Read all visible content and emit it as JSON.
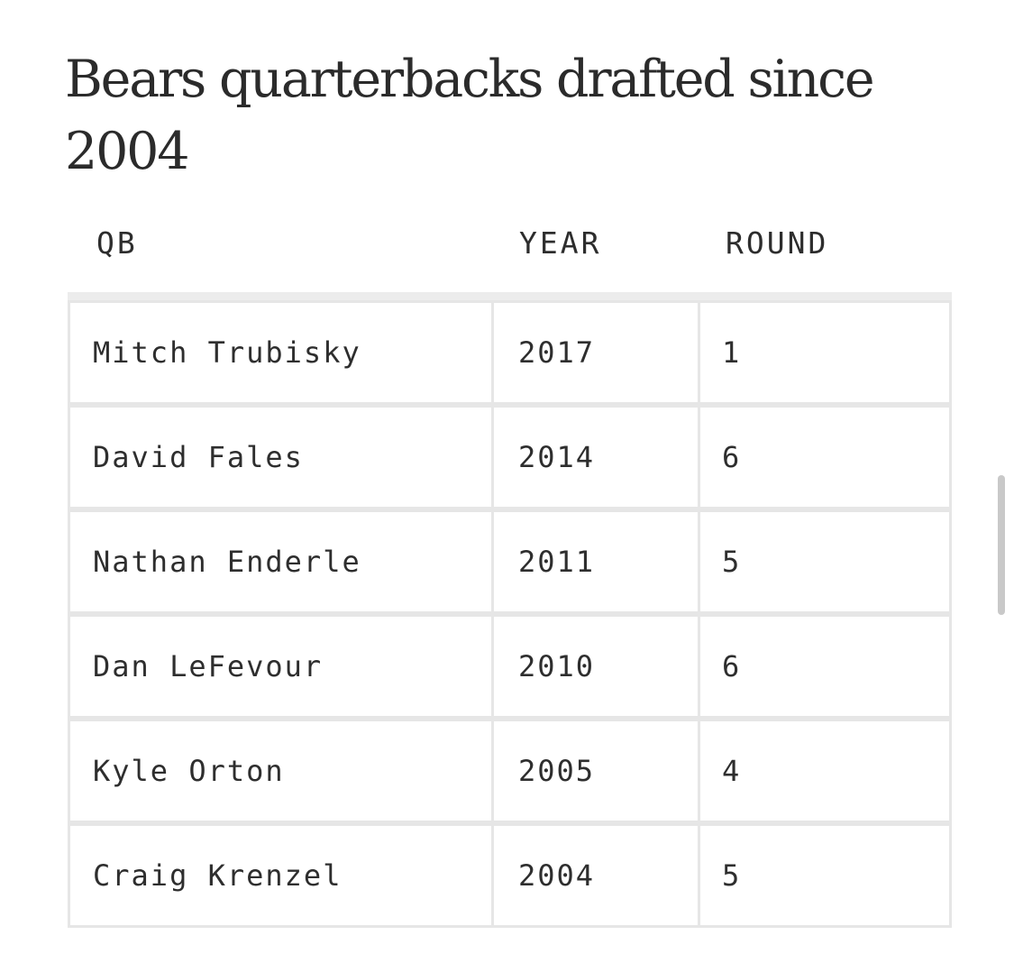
{
  "title": "Bears quarterbacks drafted since 2004",
  "table": {
    "headers": {
      "qb": "QB",
      "year": "YEAR",
      "round": "ROUND"
    },
    "rows": [
      {
        "qb": "Mitch Trubisky",
        "year": "2017",
        "round": "1"
      },
      {
        "qb": "David Fales",
        "year": "2014",
        "round": "6"
      },
      {
        "qb": "Nathan Enderle",
        "year": "2011",
        "round": "5"
      },
      {
        "qb": "Dan LeFevour",
        "year": "2010",
        "round": "6"
      },
      {
        "qb": "Kyle Orton",
        "year": "2005",
        "round": "4"
      },
      {
        "qb": "Craig Krenzel",
        "year": "2004",
        "round": "5"
      }
    ]
  }
}
